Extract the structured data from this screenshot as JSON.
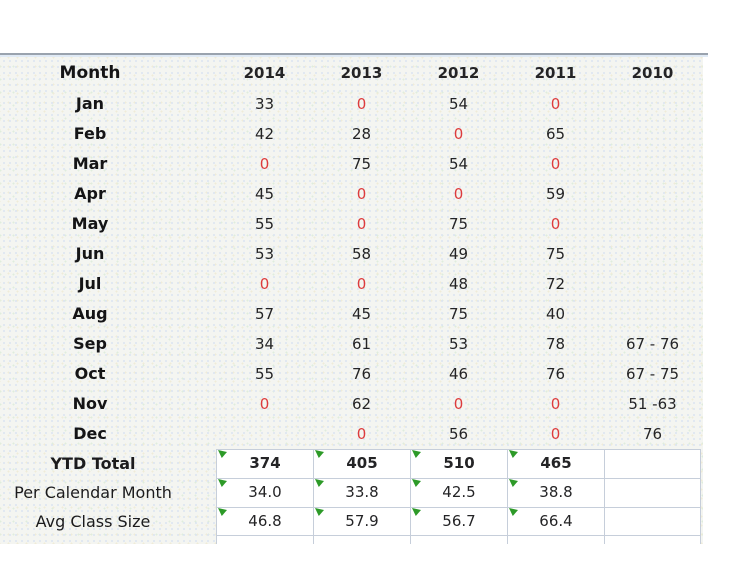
{
  "chart_data": {
    "type": "table",
    "columns": [
      "Month",
      "2014",
      "2013",
      "2012",
      "2011",
      "2010"
    ],
    "rows": [
      [
        "Jan",
        "33",
        "0",
        "54",
        "0",
        ""
      ],
      [
        "Feb",
        "42",
        "28",
        "0",
        "65",
        ""
      ],
      [
        "Mar",
        "0",
        "75",
        "54",
        "0",
        ""
      ],
      [
        "Apr",
        "45",
        "0",
        "0",
        "59",
        ""
      ],
      [
        "May",
        "55",
        "0",
        "75",
        "0",
        ""
      ],
      [
        "Jun",
        "53",
        "58",
        "49",
        "75",
        ""
      ],
      [
        "Jul",
        "0",
        "0",
        "48",
        "72",
        ""
      ],
      [
        "Aug",
        "57",
        "45",
        "75",
        "40",
        ""
      ],
      [
        "Sep",
        "34",
        "61",
        "53",
        "78",
        "67 - 76"
      ],
      [
        "Oct",
        "55",
        "76",
        "46",
        "76",
        "67 - 75"
      ],
      [
        "Nov",
        "0",
        "62",
        "0",
        "0",
        "51 -63"
      ],
      [
        "Dec",
        "",
        "0",
        "56",
        "0",
        "76"
      ]
    ],
    "summary_rows": [
      [
        "YTD Total",
        "374",
        "405",
        "510",
        "465",
        ""
      ],
      [
        "Per Calendar Month",
        "34.0",
        "33.8",
        "42.5",
        "38.8",
        ""
      ],
      [
        "Avg Class Size",
        "46.8",
        "57.9",
        "56.7",
        "66.4",
        ""
      ]
    ]
  },
  "colors": {
    "zero_red": "#dd3b3d",
    "text": "#1e1e20",
    "cell_border": "#c6ceda",
    "marker_green": "#2d9a28",
    "divider_dark": "#9aa3ae",
    "divider_light": "#e0eaf5",
    "panel_bg": "#f4f5f1"
  }
}
